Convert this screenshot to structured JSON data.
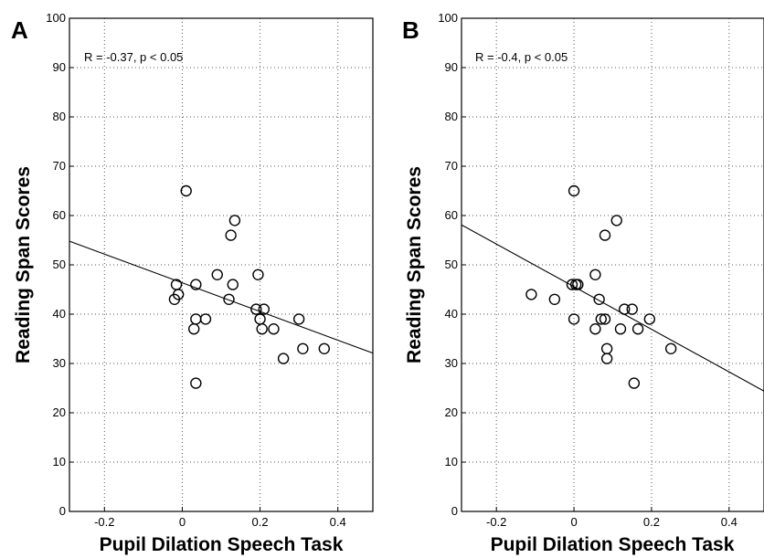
{
  "chart_data": [
    {
      "type": "scatter",
      "panel_label": "A",
      "annotation": "R = -0.37, p < 0.05",
      "xlabel": "Pupil Dilation Speech Task",
      "ylabel": "Reading Span Scores",
      "xlim": [
        -0.29,
        0.49
      ],
      "ylim": [
        0,
        100
      ],
      "xticks": [
        -0.2,
        0,
        0.2,
        0.4
      ],
      "xtick_labels": [
        "-0.2",
        "0",
        "0.2",
        "0.4"
      ],
      "yticks": [
        0,
        10,
        20,
        30,
        40,
        50,
        60,
        70,
        80,
        90,
        100
      ],
      "ytick_labels": [
        "0",
        "10",
        "20",
        "30",
        "40",
        "50",
        "60",
        "70",
        "80",
        "90",
        "100"
      ],
      "grid": true,
      "points": [
        {
          "x": 0.01,
          "y": 65
        },
        {
          "x": 0.135,
          "y": 59
        },
        {
          "x": 0.125,
          "y": 56
        },
        {
          "x": 0.195,
          "y": 48
        },
        {
          "x": 0.09,
          "y": 48
        },
        {
          "x": 0.13,
          "y": 46
        },
        {
          "x": 0.035,
          "y": 46
        },
        {
          "x": -0.015,
          "y": 46
        },
        {
          "x": -0.01,
          "y": 44
        },
        {
          "x": -0.02,
          "y": 43
        },
        {
          "x": 0.12,
          "y": 43
        },
        {
          "x": 0.19,
          "y": 41
        },
        {
          "x": 0.21,
          "y": 41
        },
        {
          "x": 0.035,
          "y": 39
        },
        {
          "x": 0.06,
          "y": 39
        },
        {
          "x": 0.2,
          "y": 39
        },
        {
          "x": 0.3,
          "y": 39
        },
        {
          "x": 0.03,
          "y": 37
        },
        {
          "x": 0.205,
          "y": 37
        },
        {
          "x": 0.235,
          "y": 37
        },
        {
          "x": 0.31,
          "y": 33
        },
        {
          "x": 0.365,
          "y": 33
        },
        {
          "x": 0.26,
          "y": 31
        },
        {
          "x": 0.035,
          "y": 26
        }
      ],
      "fit_line": {
        "x": [
          -0.29,
          0.49
        ],
        "y": [
          54.8,
          32.1
        ]
      }
    },
    {
      "type": "scatter",
      "panel_label": "B",
      "annotation": "R = -0.4, p < 0.05",
      "xlabel": "Pupil Dilation Speech Task",
      "ylabel": "Reading Span Scores",
      "xlim": [
        -0.29,
        0.49
      ],
      "ylim": [
        0,
        100
      ],
      "xticks": [
        -0.2,
        0,
        0.2,
        0.4
      ],
      "xtick_labels": [
        "-0.2",
        "0",
        "0.2",
        "0.4"
      ],
      "yticks": [
        0,
        10,
        20,
        30,
        40,
        50,
        60,
        70,
        80,
        90,
        100
      ],
      "ytick_labels": [
        "0",
        "10",
        "20",
        "30",
        "40",
        "50",
        "60",
        "70",
        "80",
        "90",
        "100"
      ],
      "grid": true,
      "points": [
        {
          "x": 0.0,
          "y": 65
        },
        {
          "x": 0.11,
          "y": 59
        },
        {
          "x": 0.08,
          "y": 56
        },
        {
          "x": 0.055,
          "y": 48
        },
        {
          "x": -0.005,
          "y": 46
        },
        {
          "x": 0.005,
          "y": 46
        },
        {
          "x": 0.01,
          "y": 46
        },
        {
          "x": -0.11,
          "y": 44
        },
        {
          "x": -0.05,
          "y": 43
        },
        {
          "x": 0.065,
          "y": 43
        },
        {
          "x": 0.13,
          "y": 41
        },
        {
          "x": 0.15,
          "y": 41
        },
        {
          "x": 0.0,
          "y": 39
        },
        {
          "x": 0.07,
          "y": 39
        },
        {
          "x": 0.08,
          "y": 39
        },
        {
          "x": 0.195,
          "y": 39
        },
        {
          "x": 0.055,
          "y": 37
        },
        {
          "x": 0.12,
          "y": 37
        },
        {
          "x": 0.165,
          "y": 37
        },
        {
          "x": 0.085,
          "y": 33
        },
        {
          "x": 0.25,
          "y": 33
        },
        {
          "x": 0.085,
          "y": 31
        },
        {
          "x": 0.155,
          "y": 26
        }
      ],
      "fit_line": {
        "x": [
          -0.29,
          0.49
        ],
        "y": [
          58.1,
          24.4
        ]
      }
    }
  ]
}
